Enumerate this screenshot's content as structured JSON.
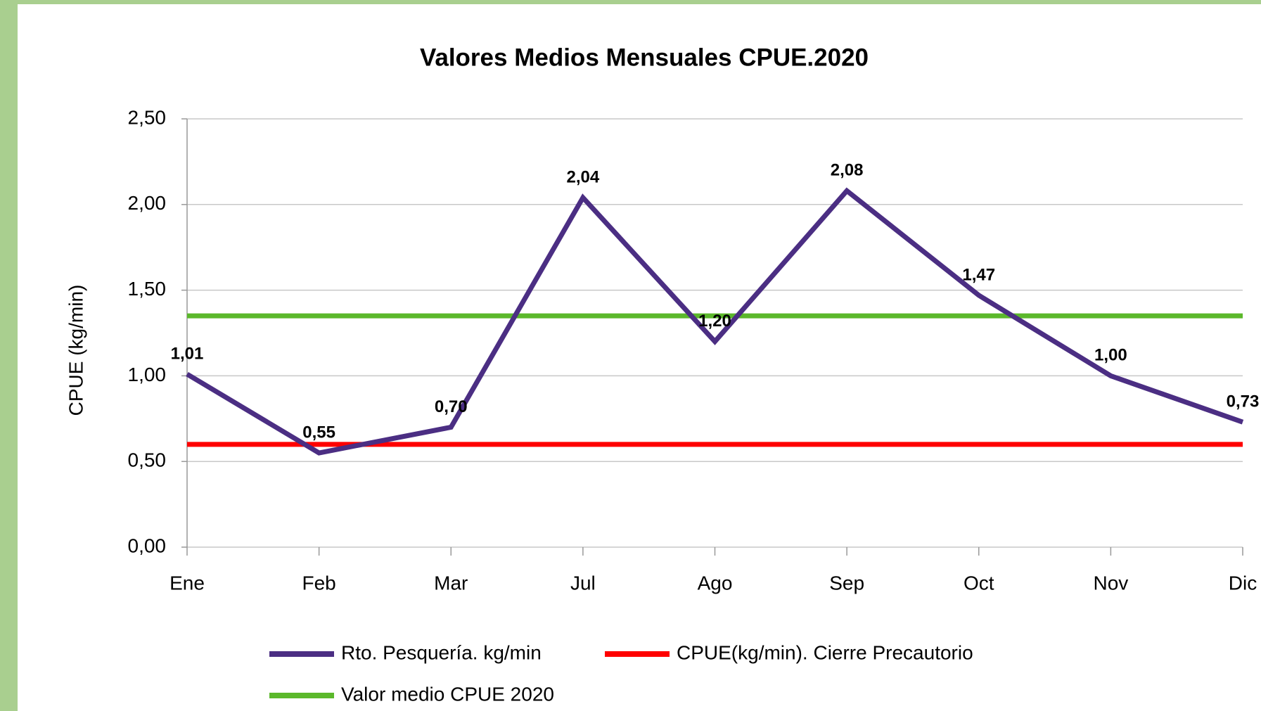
{
  "chart_data": {
    "type": "line",
    "title": "Valores Medios Mensuales CPUE.2020",
    "y_label": "CPUE (kg/min)",
    "categories": [
      "Ene",
      "Feb",
      "Mar",
      "Jul",
      "Ago",
      "Sep",
      "Oct",
      "Nov",
      "Dic"
    ],
    "series": [
      {
        "name": "Rto. Pesquería. kg/min",
        "color": "#4b2e83",
        "values": [
          1.01,
          0.55,
          0.7,
          2.04,
          1.2,
          2.08,
          1.47,
          1.0,
          0.73
        ],
        "value_labels": [
          "1,01",
          "0,55",
          "0,70",
          "2,04",
          "1,20",
          "2,08",
          "1,47",
          "1,00",
          "0,73"
        ]
      },
      {
        "name": "CPUE(kg/min). Cierre Precautorio",
        "color": "#ff0000",
        "values": [
          0.6,
          0.6,
          0.6,
          0.6,
          0.6,
          0.6,
          0.6,
          0.6,
          0.6
        ]
      },
      {
        "name": "Valor medio  CPUE 2020",
        "color": "#5bb82b",
        "values": [
          1.35,
          1.35,
          1.35,
          1.35,
          1.35,
          1.35,
          1.35,
          1.35,
          1.35
        ]
      }
    ],
    "ylim": [
      0,
      2.5
    ],
    "yticks": [
      {
        "value": 0,
        "label": "0,00"
      },
      {
        "value": 0.5,
        "label": "0,50"
      },
      {
        "value": 1,
        "label": "1,00"
      },
      {
        "value": 1.5,
        "label": "1,50"
      },
      {
        "value": 2,
        "label": "2,00"
      },
      {
        "value": 2.5,
        "label": "2,50"
      }
    ],
    "grid": true
  }
}
